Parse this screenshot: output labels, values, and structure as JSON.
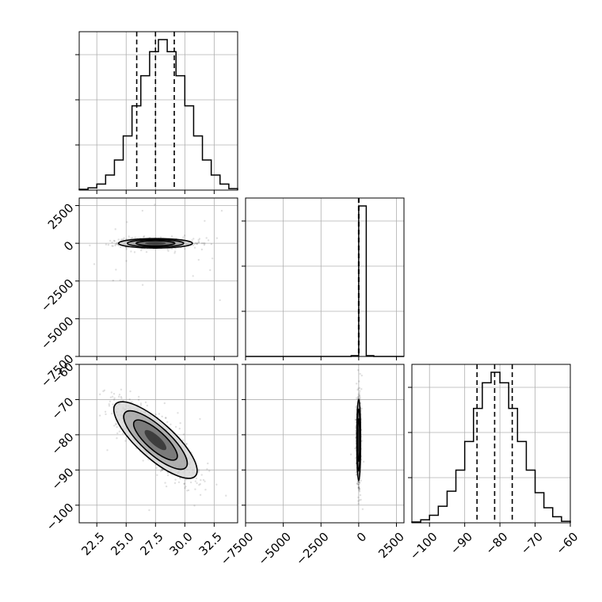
{
  "chart_data": {
    "type": "corner",
    "parameters": [
      {
        "index": 0,
        "lim": [
          21.0,
          34.5
        ],
        "ticks": [
          22.5,
          25.0,
          27.5,
          30.0,
          32.5
        ],
        "tick_labels": [
          "22.5",
          "25.0",
          "27.5",
          "30.0",
          "32.5"
        ]
      },
      {
        "index": 1,
        "lim": [
          -7500,
          3000
        ],
        "ticks": [
          -7500,
          -5000,
          -2500,
          0,
          2500
        ],
        "tick_labels": [
          "−7500",
          "−5000",
          "−2500",
          "0",
          "2500"
        ]
      },
      {
        "index": 2,
        "lim": [
          -105,
          -60
        ],
        "ticks": [
          -100,
          -90,
          -80,
          -70,
          -60
        ],
        "tick_labels": [
          "−100",
          "−90",
          "−80",
          "−70",
          "−60"
        ]
      }
    ],
    "histograms": [
      {
        "param": 0,
        "bin_edges": [
          21.0,
          21.75,
          22.5,
          23.25,
          24.0,
          24.75,
          25.5,
          26.25,
          27.0,
          27.75,
          28.5,
          29.25,
          30.0,
          30.75,
          31.5,
          32.25,
          33.0,
          33.75,
          34.5
        ],
        "counts": [
          0.005,
          0.015,
          0.04,
          0.1,
          0.2,
          0.36,
          0.56,
          0.76,
          0.92,
          1.0,
          0.92,
          0.76,
          0.56,
          0.36,
          0.2,
          0.1,
          0.04,
          0.01
        ],
        "quantiles": [
          25.9,
          27.5,
          29.1
        ]
      },
      {
        "param": 1,
        "bin_edges": [
          -7500,
          -7000,
          -6500,
          -6000,
          -5500,
          -5000,
          -4500,
          -4000,
          -3500,
          -3000,
          -2500,
          -2000,
          -1500,
          -1000,
          -500,
          0,
          500,
          1000,
          1500,
          2000,
          2500,
          3000
        ],
        "counts": [
          0,
          0,
          0,
          0,
          0,
          0,
          0,
          0,
          0,
          0,
          0,
          0,
          0,
          0,
          0.005,
          1.0,
          0.005,
          0,
          0,
          0,
          0
        ],
        "quantiles": [
          -10,
          0,
          10
        ]
      },
      {
        "param": 2,
        "bin_edges": [
          -105,
          -102.5,
          -100,
          -97.5,
          -95,
          -92.5,
          -90,
          -87.5,
          -85,
          -82.5,
          -80,
          -77.5,
          -75,
          -72.5,
          -70,
          -67.5,
          -65,
          -62.5,
          -60
        ],
        "counts": [
          0.005,
          0.02,
          0.05,
          0.11,
          0.21,
          0.35,
          0.54,
          0.76,
          0.93,
          1.0,
          0.93,
          0.76,
          0.54,
          0.35,
          0.2,
          0.1,
          0.04,
          0.01
        ],
        "quantiles": [
          -86.5,
          -81.5,
          -76.5
        ]
      }
    ],
    "scatter_panels": [
      {
        "x_param": 0,
        "y_param": 1,
        "mean": [
          27.5,
          0
        ],
        "std": [
          1.5,
          150
        ],
        "correlation": 0.0
      },
      {
        "x_param": 0,
        "y_param": 2,
        "mean": [
          27.5,
          -81.5
        ],
        "std": [
          1.6,
          5.5
        ],
        "correlation": -0.8
      },
      {
        "x_param": 1,
        "y_param": 2,
        "mean": [
          0,
          -81.5
        ],
        "std": [
          60,
          5.5
        ],
        "correlation": 0.0
      }
    ],
    "grid": true,
    "legend": "none"
  }
}
